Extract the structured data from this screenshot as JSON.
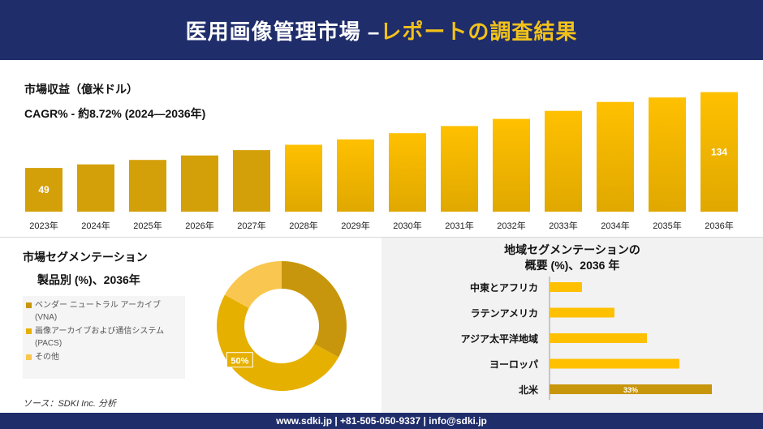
{
  "header": {
    "title_main": "医用画像管理市場 –",
    "title_accent": "レポートの調査結果"
  },
  "market": {
    "revenue_label": "市場収益（億米ドル）",
    "cagr_label": "CAGR% - 約8.72% (2024—2036年)"
  },
  "segment": {
    "title": "市場セグメンテーション",
    "subtitle": "製品別 (%)、2036年",
    "source": "ソース：SDKI Inc. 分析"
  },
  "region": {
    "title_line1": "地域セグメンテーションの",
    "title_line2": "概要 (%)、2036 年"
  },
  "footer": {
    "contact": "www.sdki.jp | +81-505-050-9337 | info@sdki.jp"
  },
  "colors": {
    "navy": "#1f2d6b",
    "gold_dark": "#c8960c",
    "gold": "#e6b000",
    "gold_light": "#f9c74f",
    "bar_dark": "#d4a00a",
    "bar_bright": "#ffc000"
  },
  "chart_data": [
    {
      "type": "bar",
      "categories": [
        "2023年",
        "2024年",
        "2025年",
        "2026年",
        "2027年",
        "2028年",
        "2029年",
        "2030年",
        "2031年",
        "2032年",
        "2033年",
        "2034年",
        "2035年",
        "2036年"
      ],
      "values": [
        49,
        53,
        58,
        63,
        69,
        75,
        81,
        88,
        96,
        104,
        113,
        123,
        128,
        134
      ],
      "data_labels": {
        "0": "49",
        "13": "134"
      },
      "ylim": [
        0,
        140
      ]
    },
    {
      "type": "pie",
      "labels": [
        "ベンダー ニュートラル アーカイブ (VNA)",
        "画像アーカイブおよび通信システム (PACS)",
        "その他"
      ],
      "values": [
        33,
        50,
        17
      ],
      "colors": [
        "#c8960c",
        "#e6b000",
        "#f9c74f"
      ],
      "data_labels": {
        "1": "50%"
      }
    },
    {
      "type": "bar",
      "orientation": "horizontal",
      "categories": [
        "中東とアフリカ",
        "ラテンアメリカ",
        "アジア太平洋地域",
        "ヨーロッパ",
        "北米"
      ],
      "values": [
        8,
        16,
        24,
        32,
        40
      ],
      "data_labels": {
        "4": "33%"
      },
      "colors": [
        "#ffc000",
        "#ffc000",
        "#ffc000",
        "#ffc000",
        "#c8960c"
      ]
    }
  ]
}
